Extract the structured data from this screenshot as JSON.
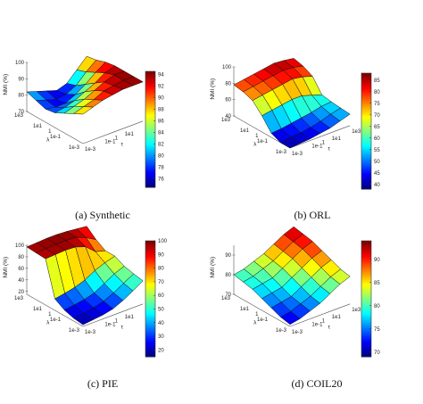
{
  "chart_data": [
    {
      "type": "surface3d",
      "caption": "(a)  Synthetic",
      "zlabel": "NMI (%)",
      "xlabel": "λ",
      "ylabel": "τ",
      "z_ticks": [
        "70",
        "80",
        "90",
        "100"
      ],
      "zlim": [
        70,
        100
      ],
      "lambda_ticks": [
        "1e3",
        "1e2",
        "1e1",
        "1",
        "1e-1",
        "1e-2",
        "1e-3"
      ],
      "tau_ticks": [
        "1e-3",
        "1e-2",
        "1e-1",
        "1",
        "1e1",
        "1e2",
        "1e3"
      ],
      "colorbar_ticks": [
        76,
        78,
        80,
        82,
        84,
        86,
        88,
        90,
        92,
        94
      ],
      "clim": [
        74.5,
        94.5
      ],
      "z": [
        [
          82,
          80,
          78,
          76,
          78,
          84,
          90
        ],
        [
          80,
          78,
          76,
          77,
          80,
          86,
          91
        ],
        [
          78,
          77,
          77,
          80,
          84,
          89,
          93
        ],
        [
          79,
          80,
          82,
          85,
          88,
          92,
          94
        ],
        [
          82,
          84,
          86,
          89,
          92,
          94,
          94
        ],
        [
          85,
          87,
          89,
          92,
          93,
          94,
          94
        ],
        [
          88,
          90,
          92,
          93,
          94,
          94,
          94
        ]
      ]
    },
    {
      "type": "surface3d",
      "caption": "(b)  ORL",
      "zlabel": "NMI (%)",
      "xlabel": "λ",
      "ylabel": "τ",
      "z_ticks": [
        "40",
        "60",
        "80",
        "100"
      ],
      "zlim": [
        40,
        100
      ],
      "lambda_ticks": [
        "1e3",
        "1e2",
        "1e1",
        "1",
        "1e-1",
        "1e-2",
        "1e-3"
      ],
      "tau_ticks": [
        "1e-3",
        "1e-2",
        "1e-1",
        "1",
        "1e1",
        "1e2",
        "1e3"
      ],
      "colorbar_ticks": [
        40,
        45,
        50,
        55,
        60,
        65,
        70,
        75,
        80,
        85
      ],
      "clim": [
        38,
        88
      ],
      "z": [
        [
          78,
          80,
          82,
          84,
          86,
          85,
          83
        ],
        [
          76,
          78,
          80,
          82,
          84,
          83,
          80
        ],
        [
          72,
          74,
          76,
          78,
          80,
          78,
          74
        ],
        [
          60,
          62,
          64,
          66,
          66,
          62,
          58
        ],
        [
          45,
          46,
          48,
          50,
          52,
          55,
          56
        ],
        [
          40,
          42,
          43,
          45,
          48,
          52,
          55
        ],
        [
          40,
          41,
          42,
          44,
          46,
          50,
          54
        ]
      ]
    },
    {
      "type": "surface3d",
      "caption": "(c)  PIE",
      "zlabel": "NMI (%)",
      "xlabel": "λ",
      "ylabel": "τ",
      "z_ticks": [
        "20",
        "40",
        "60",
        "80",
        "100"
      ],
      "zlim": [
        15,
        100
      ],
      "lambda_ticks": [
        "1e3",
        "1e2",
        "1e1",
        "1",
        "1e-1",
        "1e-2",
        "1e-3"
      ],
      "tau_ticks": [
        "1e-3",
        "1e-2",
        "1e-1",
        "1",
        "1e1",
        "1e2",
        "1e3"
      ],
      "colorbar_ticks": [
        20,
        30,
        40,
        50,
        60,
        70,
        80,
        90,
        100
      ],
      "clim": [
        15,
        100
      ],
      "z": [
        [
          97,
          98,
          99,
          99,
          98,
          96,
          94
        ],
        [
          96,
          97,
          98,
          98,
          97,
          90,
          80
        ],
        [
          95,
          96,
          97,
          96,
          90,
          75,
          70
        ],
        [
          35,
          38,
          42,
          48,
          58,
          65,
          70
        ],
        [
          25,
          27,
          30,
          35,
          45,
          55,
          62
        ],
        [
          20,
          22,
          25,
          30,
          38,
          48,
          58
        ],
        [
          18,
          20,
          22,
          26,
          34,
          44,
          55
        ]
      ]
    },
    {
      "type": "surface3d",
      "caption": "(d)  COIL20",
      "zlabel": "NMI (%)",
      "xlabel": "λ",
      "ylabel": "τ",
      "z_ticks": [
        "70",
        "80",
        "90"
      ],
      "zlim": [
        70,
        95
      ],
      "lambda_ticks": [
        "1e3",
        "1e2",
        "1e1",
        "1",
        "1e-1",
        "1e-2",
        "1e-3"
      ],
      "tau_ticks": [
        "1e-3",
        "1e-2",
        "1e-1",
        "1",
        "1e1",
        "1e2",
        "1e3"
      ],
      "colorbar_ticks": [
        70,
        75,
        80,
        85,
        90
      ],
      "clim": [
        69,
        94
      ],
      "z": [
        [
          80,
          81,
          83,
          85,
          88,
          91,
          93
        ],
        [
          79,
          80,
          82,
          84,
          87,
          90,
          92
        ],
        [
          78,
          79,
          80,
          83,
          86,
          89,
          91
        ],
        [
          76,
          77,
          78,
          81,
          84,
          87,
          89
        ],
        [
          74,
          75,
          76,
          79,
          82,
          85,
          87
        ],
        [
          72,
          73,
          75,
          77,
          80,
          83,
          85
        ],
        [
          71,
          72,
          74,
          76,
          79,
          82,
          84
        ]
      ]
    }
  ]
}
